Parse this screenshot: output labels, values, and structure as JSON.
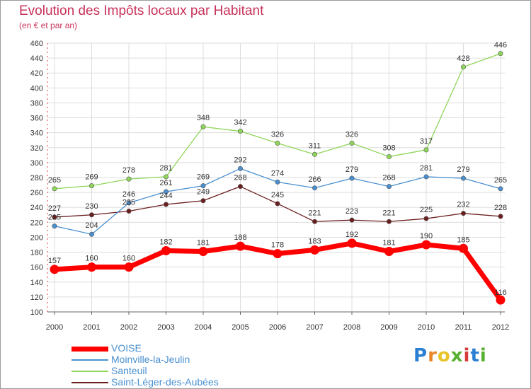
{
  "title": "Evolution des Impôts locaux par Habitant",
  "subtitle": "(en € et par an)",
  "logo": {
    "letters": [
      "P",
      "r",
      "o",
      "x",
      "i",
      "t",
      "i"
    ],
    "colors": [
      "#2a7fd4",
      "#e8862a",
      "#e8c42a",
      "#58b030",
      "#d83a3a",
      "#2a7fd4",
      "#58b030"
    ]
  },
  "chart_data": {
    "type": "line",
    "x": [
      2000,
      2001,
      2002,
      2003,
      2004,
      2005,
      2006,
      2007,
      2008,
      2009,
      2010,
      2011,
      2012
    ],
    "ylim": [
      100,
      460
    ],
    "yticks": [
      100,
      120,
      140,
      160,
      180,
      200,
      220,
      240,
      260,
      280,
      300,
      320,
      340,
      360,
      380,
      400,
      420,
      440,
      460
    ],
    "grid": true,
    "legend_position": "bottom-left",
    "series": [
      {
        "name": "VOISE",
        "color": "#ff0000",
        "values": [
          157,
          160,
          160,
          182,
          181,
          188,
          178,
          183,
          192,
          181,
          190,
          185,
          116
        ]
      },
      {
        "name": "Moinville-la-Jeulin",
        "color": "#4a90d0",
        "values": [
          215,
          204,
          246,
          261,
          269,
          292,
          274,
          266,
          279,
          268,
          281,
          279,
          265
        ]
      },
      {
        "name": "Santeuil",
        "color": "#8fd65a",
        "values": [
          265,
          269,
          278,
          281,
          348,
          342,
          326,
          311,
          326,
          308,
          317,
          428,
          446
        ]
      },
      {
        "name": "Saint-Léger-des-Aubées",
        "color": "#6b1e1e",
        "values": [
          227,
          230,
          235,
          244,
          249,
          268,
          245,
          221,
          223,
          221,
          225,
          232,
          228
        ]
      }
    ]
  }
}
